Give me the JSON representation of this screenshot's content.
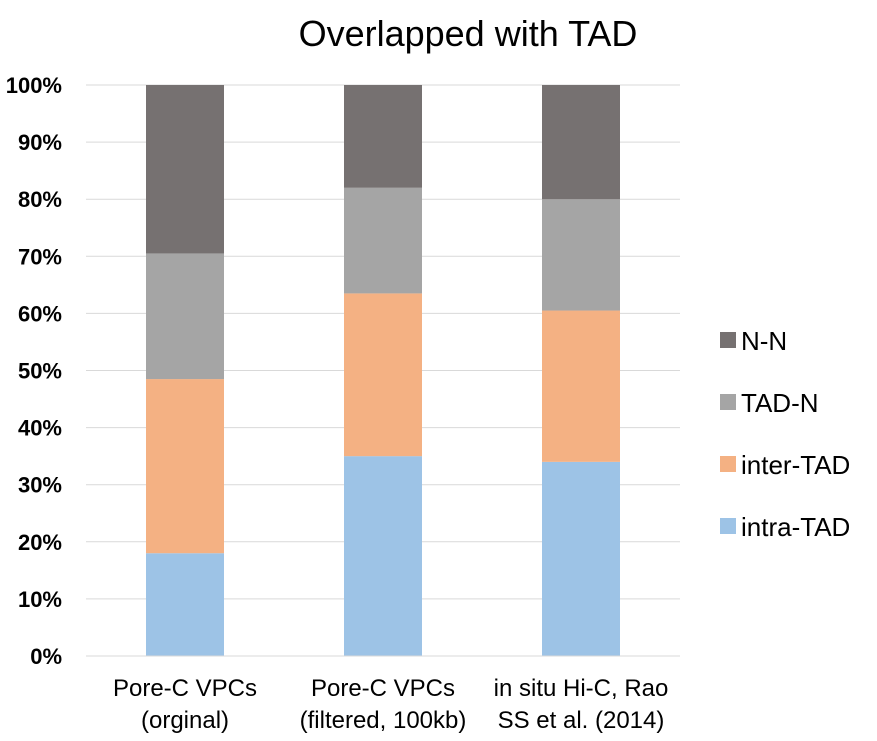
{
  "chart_data": {
    "type": "bar",
    "stacked": true,
    "percent": true,
    "title": "Overlapped with TAD",
    "xlabel": "",
    "ylabel": "",
    "ylim": [
      0,
      100
    ],
    "yticks": [
      "0%",
      "10%",
      "20%",
      "30%",
      "40%",
      "50%",
      "60%",
      "70%",
      "80%",
      "90%",
      "100%"
    ],
    "categories": [
      [
        "Pore-C VPCs",
        "(orginal)"
      ],
      [
        "Pore-C VPCs",
        "(filtered, 100kb)"
      ],
      [
        "in situ Hi-C, Rao",
        "SS et al. (2014)"
      ]
    ],
    "series": [
      {
        "name": "intra-TAD",
        "color": "#9DC3E6",
        "values": [
          18,
          35,
          34
        ]
      },
      {
        "name": "inter-TAD",
        "color": "#F4B183",
        "values": [
          30.5,
          28.5,
          26.5
        ]
      },
      {
        "name": "TAD-N",
        "color": "#A5A5A5",
        "values": [
          22,
          18.5,
          19.5
        ]
      },
      {
        "name": "N-N",
        "color": "#767171",
        "values": [
          29.5,
          18,
          20
        ]
      }
    ],
    "legend_order": [
      "N-N",
      "TAD-N",
      "inter-TAD",
      "intra-TAD"
    ],
    "legend_position": "right",
    "grid": true
  }
}
